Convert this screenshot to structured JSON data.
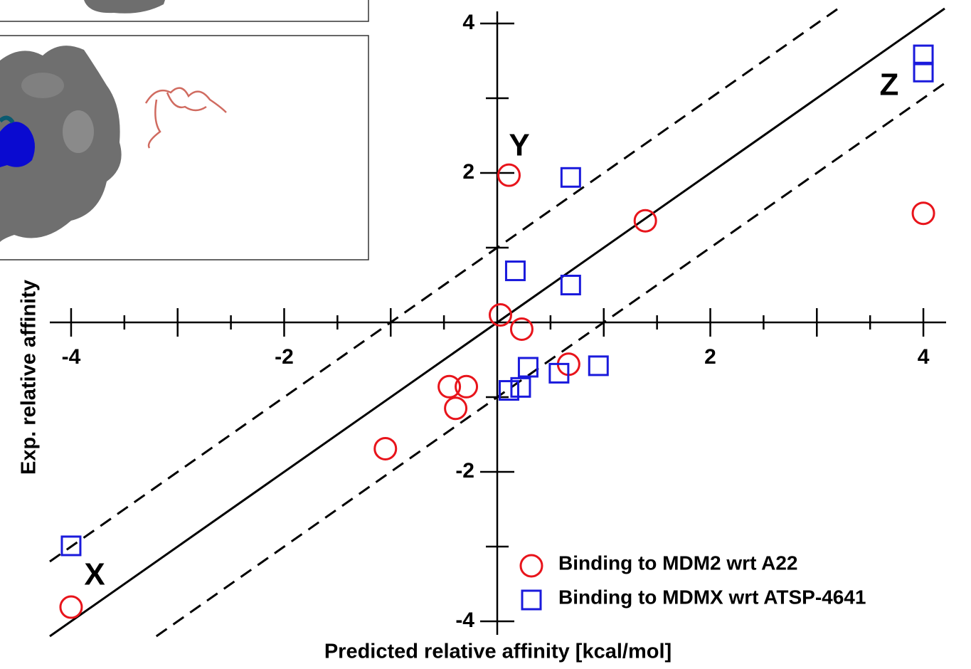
{
  "chart_data": {
    "type": "scatter",
    "x_label": "Predicted relative affinity [kcal/mol]",
    "y_label": "Exp. relative affinity",
    "xlim": [
      -4.2,
      4.2
    ],
    "ylim": [
      -4.2,
      4.2
    ],
    "xticks": [
      -4,
      -2,
      2,
      4
    ],
    "yticks": [
      -4,
      -2,
      2,
      4
    ],
    "x_unlabeled_ticks": [
      -3,
      -1,
      1,
      3
    ],
    "y_unlabeled_ticks": [
      -3,
      -1,
      1,
      3
    ],
    "x_minor_ticks": [
      -3.5,
      -2.5,
      -1.5,
      -0.5,
      0.5,
      1.5,
      2.5,
      3.5
    ],
    "reference_lines": [
      {
        "offset": 0,
        "dashed": false
      },
      {
        "offset": 1,
        "dashed": true
      },
      {
        "offset": -1,
        "dashed": true
      }
    ],
    "legend": "lower right",
    "series": [
      {
        "name": "Binding to MDM2 wrt A22",
        "color": "#e8141b",
        "marker": "circle",
        "x": [
          -4,
          -1.05,
          -0.45,
          -0.29,
          -0.39,
          0.03,
          0.23,
          0.11,
          0.67,
          1.39,
          4.0
        ],
        "y": [
          -3.81,
          -1.69,
          -0.86,
          -0.86,
          -1.15,
          0.1,
          -0.09,
          1.97,
          -0.56,
          1.36,
          1.46
        ]
      },
      {
        "name": "Binding to MDMX wrt ATSP-4641",
        "color": "#1a1adc",
        "marker": "square",
        "x": [
          -4,
          0.11,
          0.22,
          0.29,
          0.58,
          0.95,
          0.17,
          0.69,
          0.69,
          4.0,
          4.0
        ],
        "y": [
          -2.99,
          -0.91,
          -0.87,
          -0.6,
          -0.68,
          -0.58,
          0.69,
          0.5,
          1.94,
          3.58,
          3.35
        ]
      }
    ],
    "annotations": [
      "Y",
      "Z",
      "X"
    ]
  }
}
